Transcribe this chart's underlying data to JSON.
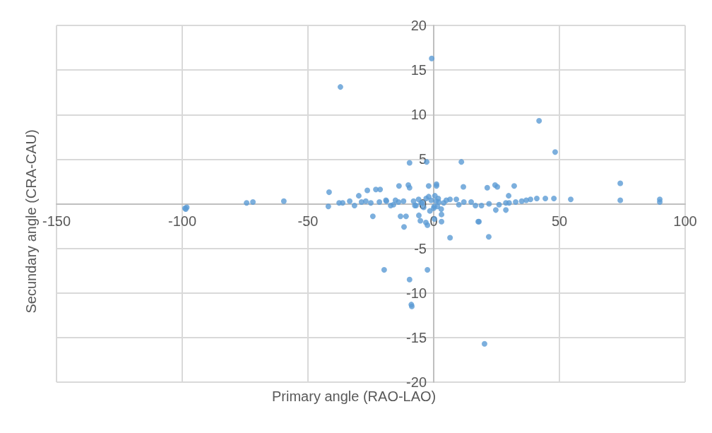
{
  "chart_data": {
    "type": "scatter",
    "xlabel": "Primary angle (RAO-LAO)",
    "ylabel": "Secundary angle (CRA-CAU)",
    "xlim": [
      -150,
      100
    ],
    "xticks": [
      -150,
      -100,
      -50,
      0,
      50,
      100
    ],
    "ylim": [
      -20,
      20
    ],
    "yticks": [
      -20,
      -15,
      -10,
      -5,
      0,
      5,
      10,
      15,
      20
    ],
    "grid": true,
    "marker": "circle",
    "series": [
      {
        "color": "#5b9bd5",
        "x": [
          -37.1,
          -0.8,
          41.9,
          48.3,
          -19.7,
          -2.5,
          -9.6,
          -8.7,
          -8.9,
          20.2,
          -9.6,
          -2.8,
          11,
          -98.6,
          -98.2,
          -98.9,
          -74.4,
          -71.9,
          -59.6,
          -41.9,
          -41.6,
          74.2,
          74.2,
          89.9,
          89.9,
          54.5,
          47.8,
          21.3,
          24.4,
          25.3,
          32,
          29.8,
          18,
          21.9,
          28.7,
          16.6,
          24.7,
          28.7,
          44.4,
          41,
          36.8,
          32.6,
          38.5,
          35,
          30,
          26,
          22,
          19,
          -37.6,
          -36.2,
          -33.4,
          -31.5,
          -29.8,
          -28.7,
          -26.4,
          -24.2,
          -23,
          -21.3,
          -21.6,
          -18.8,
          -17.1,
          -15.2,
          -13.8,
          -13.2,
          -11,
          -11.8,
          -10.1,
          -9.6,
          -5.9,
          -5.3,
          -3.1,
          -2.5,
          -2,
          1.1,
          1.1,
          0.3,
          3.1,
          3.1,
          6.5,
          6.5,
          11.8,
          14.9,
          17.7,
          -8,
          -7,
          -6,
          -5,
          -4,
          -3,
          -2,
          -1,
          0,
          0.5,
          1,
          1.5,
          2,
          3,
          4,
          5,
          -1.5,
          0.2,
          1.8,
          -4.5,
          -7.5,
          -12,
          -14,
          -16,
          -19,
          -25,
          -27,
          9,
          10,
          12
        ],
        "values": [
          13.1,
          16.3,
          9.3,
          5.8,
          -7.4,
          -7.4,
          -8.5,
          -11.5,
          -11.3,
          -15.7,
          4.6,
          4.7,
          4.7,
          -0.6,
          -0.4,
          -0.5,
          0.1,
          0.2,
          0.3,
          -0.3,
          1.3,
          2.3,
          0.4,
          0.5,
          0.2,
          0.5,
          0.6,
          1.8,
          2.1,
          1.9,
          2.0,
          0.9,
          -2.0,
          -3.7,
          0.1,
          -0.2,
          -0.7,
          -0.7,
          0.6,
          0.6,
          0.4,
          0.2,
          0.5,
          0.3,
          0.1,
          -0.1,
          0,
          -0.2,
          0.1,
          0.1,
          0.3,
          -0.2,
          0.9,
          0.2,
          1.5,
          -1.4,
          1.6,
          1.6,
          0.2,
          0.3,
          -0.2,
          0.4,
          2.0,
          -1.4,
          -1.4,
          -2.6,
          2.1,
          1.8,
          -1.3,
          -1.9,
          -2.1,
          -2.4,
          2.0,
          2.2,
          2.0,
          -1.7,
          -1.2,
          -2.0,
          -3.8,
          0.5,
          1.9,
          0.2,
          -2.0,
          0.3,
          -0.2,
          0.5,
          0.1,
          -0.4,
          0.6,
          0.8,
          0.4,
          -0.5,
          0.9,
          0.3,
          -0.3,
          0.2,
          -0.6,
          0.1,
          0.4,
          -0.8,
          -0.3,
          0.6,
          0.1,
          -0.2,
          0.3,
          0.2,
          -0.1,
          0.4,
          0.1,
          0.3,
          0.5,
          -0.1,
          0.2
        ]
      }
    ]
  }
}
